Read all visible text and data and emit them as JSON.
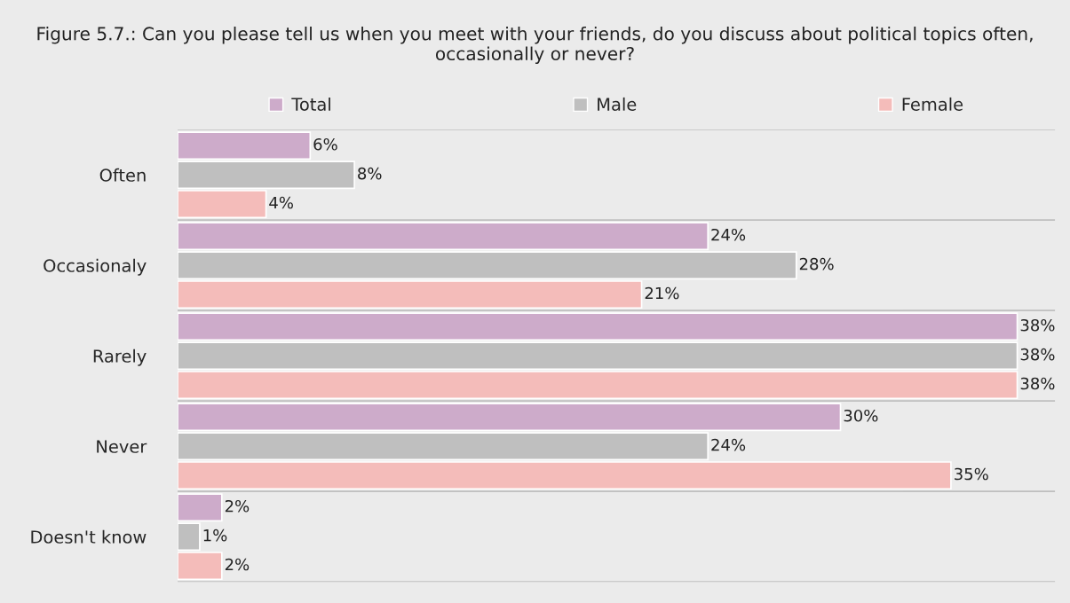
{
  "chart_data": {
    "type": "bar",
    "orientation": "horizontal",
    "title": "Figure 5.7.: Can you please tell us when you meet with your friends, do you discuss about political topics often, occasionally or never?",
    "categories": [
      "Often",
      "Occasionaly",
      "Rarely",
      "Never",
      "Doesn't know"
    ],
    "series": [
      {
        "name": "Total",
        "color": "#cdabca",
        "values": [
          6,
          24,
          38,
          30,
          2
        ],
        "value_labels": [
          "6%",
          "24%",
          "38%",
          "30%",
          "2%"
        ]
      },
      {
        "name": "Male",
        "color": "#bfbfbf",
        "values": [
          8,
          28,
          38,
          24,
          1
        ],
        "value_labels": [
          "8%",
          "28%",
          "38%",
          "24%",
          "1%"
        ]
      },
      {
        "name": "Female",
        "color": "#f4bcba",
        "values": [
          4,
          21,
          38,
          35,
          2
        ],
        "value_labels": [
          "4%",
          "21%",
          "38%",
          "35%",
          "2%"
        ]
      }
    ],
    "grid": "y",
    "legend": "top"
  }
}
